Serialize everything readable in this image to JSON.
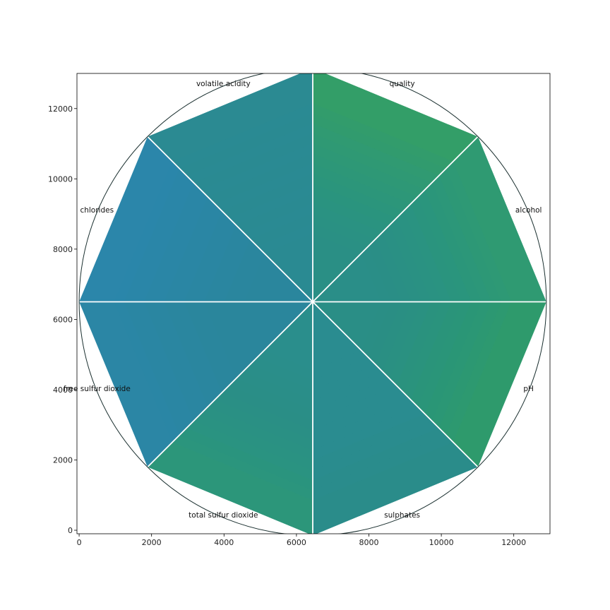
{
  "chart_data": {
    "type": "radar",
    "title": "",
    "xlabel": "",
    "ylabel": "",
    "xlim": [
      -60,
      13000
    ],
    "ylim": [
      -100,
      13000
    ],
    "x_ticks": [
      0,
      2000,
      4000,
      6000,
      8000,
      10000,
      12000
    ],
    "y_ticks": [
      0,
      2000,
      4000,
      6000,
      8000,
      10000,
      12000
    ],
    "grid": false,
    "center": [
      6450,
      6500
    ],
    "radius": 6450,
    "axes": [
      {
        "label": "quality",
        "angle_deg": 67.5
      },
      {
        "label": "alcohol",
        "angle_deg": 22.5
      },
      {
        "label": "pH",
        "angle_deg": -22.5
      },
      {
        "label": "sulphates",
        "angle_deg": -67.5
      },
      {
        "label": "total sulfur dioxide",
        "angle_deg": -112.5
      },
      {
        "label": "free sulfur dioxide",
        "angle_deg": -157.5
      },
      {
        "label": "chlorides",
        "angle_deg": 157.5
      },
      {
        "label": "volatile acidity",
        "angle_deg": 112.5
      }
    ],
    "spokes_deg": [
      0,
      45,
      90,
      135,
      180,
      225,
      270,
      315
    ],
    "sectors": [
      {
        "axis": "quality",
        "color": "#339e68"
      },
      {
        "axis": "alcohol",
        "color": "#2f9a72"
      },
      {
        "axis": "pH",
        "color": "#2e9a6c"
      },
      {
        "axis": "sulphates",
        "color": "#2a8c8a"
      },
      {
        "axis": "total sulfur dioxide",
        "color": "#2c967a"
      },
      {
        "axis": "free sulfur dioxide",
        "color": "#2b86a5"
      },
      {
        "axis": "chlorides",
        "color": "#2b86aa"
      },
      {
        "axis": "volatile acidity",
        "color": "#2b8a92"
      }
    ],
    "colors": {
      "inner_teal": "#2a8890",
      "edge_blue": "#2c88a8",
      "edge_green": "#31a06a",
      "spoke": "#ffffff",
      "circle": "#1b3030"
    }
  }
}
